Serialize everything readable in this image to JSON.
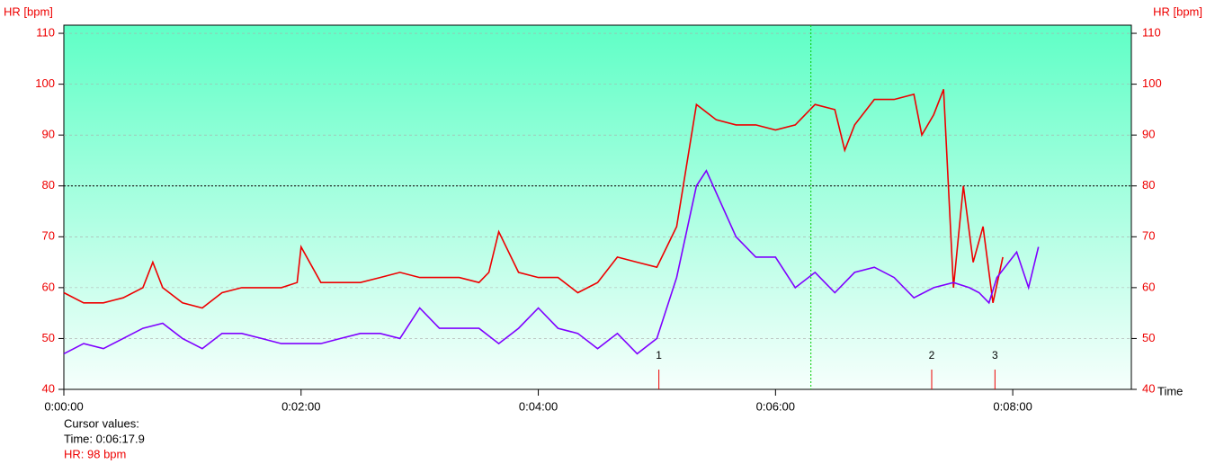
{
  "chart_data": {
    "type": "line",
    "y_label": "HR [bpm]",
    "y2_label": "HR [bpm]",
    "x_label": "Time",
    "xlim": [
      0,
      540
    ],
    "ylim": [
      40,
      111.6
    ],
    "xticks": [
      {
        "value": 0,
        "label": "0:00:00"
      },
      {
        "value": 120,
        "label": "0:02:00"
      },
      {
        "value": 240,
        "label": "0:04:00"
      },
      {
        "value": 360,
        "label": "0:06:00"
      },
      {
        "value": 480,
        "label": "0:08:00"
      }
    ],
    "yticks": [
      40,
      50,
      60,
      70,
      80,
      90,
      100,
      110
    ],
    "grid": true,
    "reference_line": 80,
    "cursor_x": 377.9,
    "markers": [
      {
        "label": "1",
        "x": 301
      },
      {
        "label": "2",
        "x": 439
      },
      {
        "label": "3",
        "x": 471
      }
    ],
    "series": [
      {
        "color": "#ee0000",
        "x": [
          0,
          10,
          20,
          30,
          40,
          45,
          50,
          60,
          70,
          80,
          90,
          100,
          110,
          118,
          120,
          130,
          140,
          150,
          160,
          170,
          180,
          190,
          200,
          210,
          215,
          220,
          230,
          240,
          250,
          260,
          270,
          280,
          290,
          300,
          305,
          310,
          320,
          330,
          340,
          350,
          360,
          370,
          380,
          390,
          395,
          400,
          410,
          420,
          430,
          434,
          440,
          445,
          450,
          455,
          460,
          465,
          470,
          475
        ],
        "values": [
          59,
          57,
          57,
          58,
          60,
          65,
          60,
          57,
          56,
          59,
          60,
          60,
          60,
          61,
          68,
          61,
          61,
          61,
          62,
          63,
          62,
          62,
          62,
          61,
          63,
          71,
          63,
          62,
          62,
          59,
          61,
          66,
          65,
          64,
          68,
          72,
          96,
          93,
          92,
          92,
          91,
          92,
          96,
          95,
          87,
          92,
          97,
          97,
          98,
          90,
          94,
          99,
          60,
          80,
          65,
          72,
          57,
          66
        ]
      },
      {
        "color": "#7f00ff",
        "x": [
          0,
          10,
          20,
          30,
          40,
          50,
          60,
          70,
          80,
          90,
          100,
          110,
          120,
          130,
          140,
          150,
          160,
          170,
          180,
          190,
          200,
          210,
          220,
          230,
          240,
          250,
          260,
          270,
          280,
          290,
          300,
          310,
          320,
          325,
          340,
          350,
          360,
          370,
          380,
          390,
          400,
          410,
          420,
          430,
          440,
          450,
          458,
          463,
          468,
          472,
          482,
          488,
          493
        ],
        "values": [
          47,
          49,
          48,
          50,
          52,
          53,
          50,
          48,
          51,
          51,
          50,
          49,
          49,
          49,
          50,
          51,
          51,
          50,
          56,
          52,
          52,
          52,
          49,
          52,
          56,
          52,
          51,
          48,
          51,
          47,
          50,
          62,
          80,
          83,
          70,
          66,
          66,
          60,
          63,
          59,
          63,
          64,
          62,
          58,
          60,
          61,
          60,
          59,
          57,
          62,
          67,
          60,
          68
        ]
      }
    ],
    "cursor_title": "Cursor values:",
    "cursor_time": "Time: 0:06:17.9",
    "cursor_hr": "HR: 98 bpm"
  }
}
